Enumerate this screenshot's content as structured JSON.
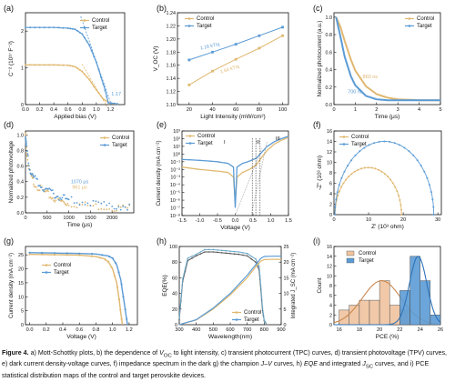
{
  "colors": {
    "control": "#e0b870",
    "target": "#5b9bd5",
    "frame": "#111111",
    "gray": "#9a9a9a",
    "eqe": "#6aa7c7"
  },
  "legend": {
    "control": "Control",
    "target": "Target"
  },
  "caption": {
    "figure": "Figure 4.",
    "segments": [
      {
        "t": "a) Mott-Schottky plots, b) the dependence of ",
        "s": "n"
      },
      {
        "t": "V",
        "s": "i"
      },
      {
        "t": "OC",
        "s": "sub"
      },
      {
        "t": " to light intensity, c) transient photocurrent (TPC) curves, d) transient photovoltage (TPV) curves, e) dark current density-voltage curves, f) impedance spectrum in the dark g) the champion ",
        "s": "n"
      },
      {
        "t": "J–V",
        "s": "i"
      },
      {
        "t": " curves, h) ",
        "s": "n"
      },
      {
        "t": "EQE",
        "s": "i"
      },
      {
        "t": " and integrated ",
        "s": "n"
      },
      {
        "t": "J",
        "s": "i"
      },
      {
        "t": "SC",
        "s": "sub"
      },
      {
        "t": " curves, and i) PCE statistical distribution maps of the control and target perovskite devices.",
        "s": "n"
      }
    ]
  },
  "chart_data": [
    {
      "panel": "(a)",
      "type": "line",
      "xlabel": "Applied bias (V)",
      "ylabel": "C⁻² (10¹⁷ F⁻²)",
      "xlim": [
        0,
        1.4
      ],
      "ylim": [
        0,
        2.5
      ],
      "xticks": [
        "0.0",
        "0.2",
        "0.4",
        "0.6",
        "0.8",
        "1.0",
        "1.2"
      ],
      "yticks": [
        "0",
        "1",
        "2"
      ],
      "annotations": [
        "1.17"
      ],
      "series": [
        {
          "name": "Control",
          "x": [
            0,
            0.2,
            0.4,
            0.6,
            0.7,
            0.8,
            0.9,
            1.0,
            1.1,
            1.2,
            1.3
          ],
          "y": [
            1.08,
            1.08,
            1.08,
            1.07,
            1.03,
            0.9,
            0.68,
            0.4,
            0.15,
            0.03,
            0.02
          ]
        },
        {
          "name": "Target",
          "x": [
            0,
            0.2,
            0.4,
            0.6,
            0.7,
            0.8,
            0.9,
            1.0,
            1.1,
            1.17,
            1.3
          ],
          "y": [
            2.1,
            2.1,
            2.1,
            2.08,
            2.05,
            1.92,
            1.62,
            1.15,
            0.55,
            0.05,
            0.02
          ]
        }
      ]
    },
    {
      "panel": "(b)",
      "type": "scatter",
      "xlabel": "Light Intensity (mW/cm²)",
      "ylabel": "V_OC (V)",
      "xlim": [
        10,
        105
      ],
      "ylim": [
        1.1,
        1.24
      ],
      "xticks": [
        "20",
        "40",
        "60",
        "80",
        "100"
      ],
      "yticks": [
        "1.10",
        "1.12",
        "1.14",
        "1.16",
        "1.18",
        "1.20",
        "1.22",
        "1.24"
      ],
      "annotations": [
        "1.16 kT/q",
        "1.64 kT/q"
      ],
      "series": [
        {
          "name": "Control",
          "x": [
            20,
            40,
            60,
            80,
            100
          ],
          "y": [
            1.13,
            1.151,
            1.169,
            1.186,
            1.205
          ]
        },
        {
          "name": "Target",
          "x": [
            20,
            40,
            60,
            80,
            100
          ],
          "y": [
            1.168,
            1.18,
            1.192,
            1.205,
            1.218
          ]
        }
      ]
    },
    {
      "panel": "(c)",
      "type": "line",
      "xlabel": "Time (μs)",
      "ylabel": "Normalized photocurrent (a.u.)",
      "xlim": [
        0,
        5
      ],
      "ylim": [
        0,
        1.05
      ],
      "xticks": [
        "0",
        "1",
        "2",
        "3",
        "4",
        "5"
      ],
      "yticks": [
        "0.0",
        "0.2",
        "0.4",
        "0.6",
        "0.8",
        "1.0"
      ],
      "annotations": [
        "860 ns",
        "700 ns"
      ],
      "series": [
        {
          "name": "Control",
          "x": [
            0.1,
            0.3,
            0.5,
            0.8,
            1.0,
            1.5,
            2.0,
            2.5,
            3.0,
            4.0,
            5.0
          ],
          "y": [
            1.0,
            0.89,
            0.73,
            0.51,
            0.39,
            0.21,
            0.12,
            0.08,
            0.06,
            0.05,
            0.05
          ]
        },
        {
          "name": "Target",
          "x": [
            0.1,
            0.3,
            0.5,
            0.8,
            1.0,
            1.5,
            2.0,
            2.5,
            3.0,
            4.0,
            5.0
          ],
          "y": [
            1.0,
            0.78,
            0.55,
            0.32,
            0.22,
            0.1,
            0.06,
            0.05,
            0.05,
            0.05,
            0.05
          ]
        }
      ]
    },
    {
      "panel": "(d)",
      "type": "line",
      "xlabel": "Time (μs)",
      "ylabel": "Normalized photovoltage",
      "xlim": [
        0,
        2500
      ],
      "ylim": [
        0,
        1.05
      ],
      "xticks": [
        "0",
        "500",
        "1000",
        "1500",
        "2000"
      ],
      "yticks": [
        "0.0",
        "0.2",
        "0.4",
        "0.6",
        "0.8",
        "1.0"
      ],
      "annotations": [
        "1070 μs",
        "961 μs"
      ],
      "series": [
        {
          "name": "Control",
          "x": [
            0,
            20,
            100,
            200,
            400,
            600,
            800,
            1000,
            1500,
            2000,
            2400
          ],
          "y": [
            1.0,
            0.8,
            0.5,
            0.38,
            0.28,
            0.2,
            0.15,
            0.12,
            0.09,
            0.07,
            0.06
          ]
        },
        {
          "name": "Target",
          "x": [
            0,
            20,
            100,
            200,
            400,
            600,
            800,
            1000,
            1500,
            2000,
            2400
          ],
          "y": [
            1.0,
            0.85,
            0.56,
            0.44,
            0.33,
            0.25,
            0.2,
            0.16,
            0.12,
            0.09,
            0.08
          ]
        }
      ]
    },
    {
      "panel": "(e)",
      "type": "line",
      "yscale": "log",
      "xlabel": "Voltage (V)",
      "ylabel": "Current density (mA cm⁻²)",
      "xlim": [
        -1.5,
        1.5
      ],
      "ylim": [
        1e-08,
        1000
      ],
      "xticks": [
        "-1.5",
        "-1.0",
        "-0.5",
        "0.0",
        "0.5",
        "1.0",
        "1.5"
      ],
      "yticks": [
        "10³",
        "10²",
        "10¹",
        "10⁰",
        "10⁻¹",
        "10⁻²",
        "10⁻³",
        "10⁻⁴",
        "10⁻⁵",
        "10⁻⁶",
        "10⁻⁷",
        "10⁻⁸"
      ],
      "annotations": [
        "I",
        "II",
        "III"
      ],
      "series": [
        {
          "name": "Control",
          "x": [
            -1.5,
            -1.0,
            -0.5,
            -0.2,
            -0.05,
            0.0,
            0.05,
            0.2,
            0.4,
            0.6,
            0.7,
            0.9,
            1.1,
            1.3,
            1.5
          ],
          "y": [
            0.02,
            0.01,
            0.006,
            0.004,
            0.001,
            1e-06,
            0.001,
            0.004,
            0.01,
            0.04,
            0.2,
            3,
            20,
            60,
            150
          ]
        },
        {
          "name": "Target",
          "x": [
            -1.5,
            -1.0,
            -0.5,
            -0.2,
            -0.05,
            0.0,
            0.05,
            0.2,
            0.4,
            0.6,
            0.7,
            0.9,
            1.1,
            1.3,
            1.5
          ],
          "y": [
            0.2,
            0.15,
            0.1,
            0.06,
            0.02,
            1e-07,
            0.02,
            0.06,
            0.12,
            0.3,
            1,
            10,
            40,
            100,
            200
          ]
        }
      ]
    },
    {
      "panel": "(f)",
      "type": "scatter",
      "xlabel": "Z' (10³ ohm)",
      "ylabel": "-Z'' (10³ ohm)",
      "xlim": [
        0,
        31
      ],
      "ylim": [
        0,
        16
      ],
      "xticks": [
        "0",
        "10",
        "20",
        "30"
      ],
      "yticks": [
        "0",
        "2",
        "4",
        "6",
        "8",
        "10",
        "12",
        "14",
        "16"
      ],
      "series": [
        {
          "name": "Control",
          "shape": "semicircle",
          "x_start": 0.3,
          "x_end": 19.5,
          "peak": 9.0
        },
        {
          "name": "Target",
          "shape": "semicircle",
          "x_start": 0.3,
          "x_end": 28.8,
          "peak": 14.0
        }
      ]
    },
    {
      "panel": "(g)",
      "type": "line",
      "xlabel": "Voltage (V)",
      "ylabel": "Current density (mA cm⁻²)",
      "xlim": [
        -0.05,
        1.3
      ],
      "ylim": [
        0,
        28
      ],
      "xticks": [
        "0.0",
        "0.2",
        "0.4",
        "0.6",
        "0.8",
        "1.0",
        "1.2"
      ],
      "yticks": [
        "0",
        "5",
        "10",
        "15",
        "20",
        "25"
      ],
      "series": [
        {
          "name": "Control",
          "x": [
            0,
            0.2,
            0.4,
            0.6,
            0.8,
            0.9,
            0.95,
            1.0,
            1.05,
            1.08,
            1.1,
            1.12
          ],
          "y": [
            25.2,
            25.1,
            25.0,
            24.9,
            24.4,
            23.6,
            22.5,
            20.0,
            15.0,
            9.0,
            4.0,
            0.0
          ]
        },
        {
          "name": "Target",
          "x": [
            0,
            0.2,
            0.4,
            0.6,
            0.8,
            0.95,
            1.0,
            1.05,
            1.1,
            1.13,
            1.16,
            1.18
          ],
          "y": [
            25.8,
            25.7,
            25.6,
            25.5,
            25.3,
            24.6,
            23.8,
            21.5,
            16.0,
            10.0,
            4.0,
            0.0
          ]
        }
      ]
    },
    {
      "panel": "(h)",
      "type": "line",
      "xlabel": "Wavelength(nm)",
      "ylabel": "EQE(%)",
      "ylabel2": "Integrated J_SC (mA cm⁻²)",
      "xlim": [
        300,
        900
      ],
      "ylim": [
        0,
        100
      ],
      "ylim2": [
        0,
        25
      ],
      "xticks": [
        "300",
        "400",
        "500",
        "600",
        "700",
        "800",
        "900"
      ],
      "yticks": [
        "0",
        "20",
        "40",
        "60",
        "80",
        "100"
      ],
      "yticks2": [
        "0",
        "5",
        "10",
        "15",
        "20",
        "25"
      ],
      "series": [
        {
          "name": "Control EQE",
          "x": [
            300,
            320,
            350,
            400,
            450,
            500,
            550,
            600,
            650,
            700,
            750,
            770,
            780,
            790,
            800,
            810
          ],
          "y": [
            6,
            55,
            82,
            88,
            93,
            93,
            92,
            91,
            90,
            88,
            80,
            70,
            45,
            18,
            5,
            2
          ]
        },
        {
          "name": "Target EQE",
          "x": [
            300,
            320,
            350,
            400,
            450,
            500,
            550,
            600,
            650,
            700,
            750,
            770,
            780,
            790,
            800,
            810
          ],
          "y": [
            8,
            58,
            85,
            90,
            96,
            96,
            95,
            94,
            93,
            91,
            84,
            75,
            50,
            22,
            6,
            2
          ]
        },
        {
          "name": "Control",
          "x": [
            300,
            400,
            500,
            600,
            700,
            750,
            780,
            800,
            850,
            900
          ],
          "y": [
            0,
            1.5,
            5,
            9.5,
            15,
            18.5,
            20.3,
            20.8,
            20.9,
            20.9
          ]
        },
        {
          "name": "Target",
          "x": [
            300,
            400,
            500,
            600,
            700,
            750,
            780,
            800,
            850,
            900
          ],
          "y": [
            0,
            1.6,
            5.3,
            10,
            15.8,
            19.2,
            21.2,
            21.8,
            21.9,
            21.9
          ]
        }
      ]
    },
    {
      "panel": "(i)",
      "type": "bar",
      "xlabel": "PCE (%)",
      "ylabel": "Count",
      "xlim": [
        15.5,
        26
      ],
      "ylim": [
        0,
        16
      ],
      "xticks": [
        "16",
        "18",
        "20",
        "22",
        "24",
        "26"
      ],
      "yticks": [
        "0",
        "2",
        "4",
        "6",
        "8",
        "10",
        "12",
        "14",
        "16"
      ],
      "series": [
        {
          "name": "Control",
          "x": [
            16.5,
            17.5,
            18.5,
            19.5,
            20.5,
            21.5,
            22.5
          ],
          "values": [
            3,
            4,
            5,
            5,
            9,
            4,
            3
          ],
          "fit_mean": 20.2,
          "fit_sigma": 1.9,
          "fit_peak": 9
        },
        {
          "name": "Target",
          "x": [
            22.5,
            23.5,
            24.5,
            25.5
          ],
          "values": [
            7,
            14,
            9,
            2
          ],
          "fit_mean": 23.8,
          "fit_sigma": 0.85,
          "fit_peak": 14
        }
      ]
    }
  ]
}
